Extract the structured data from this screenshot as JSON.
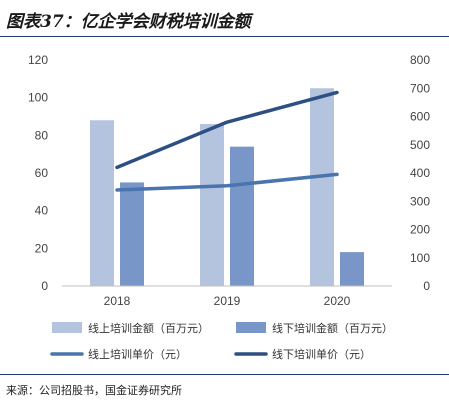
{
  "title": "图表37：亿企学会财税培训金额",
  "source": "来源：公司招股书，国金证券研究所",
  "chart_data": {
    "type": "bar+line",
    "categories": [
      "2018",
      "2019",
      "2020"
    ],
    "y_left": {
      "min": 0,
      "max": 120,
      "ticks": [
        "0",
        "20",
        "40",
        "60",
        "80",
        "100",
        "120"
      ]
    },
    "y_right": {
      "min": 0,
      "max": 800,
      "ticks": [
        "0",
        "100",
        "200",
        "300",
        "400",
        "500",
        "600",
        "700",
        "800"
      ]
    },
    "bar_series": [
      {
        "name": "线上培训金额（百万元）",
        "axis": "left",
        "color": "#b4c3de",
        "values": [
          88,
          86,
          105
        ]
      },
      {
        "name": "线下培训金额（百万元）",
        "axis": "left",
        "color": "#7897c8",
        "values": [
          55,
          74,
          18
        ]
      }
    ],
    "line_series": [
      {
        "name": "线上培训单价（元）",
        "axis": "right",
        "color": "#4a74ad",
        "values": [
          340,
          355,
          395
        ]
      },
      {
        "name": "线下培训单价（元）",
        "axis": "right",
        "color": "#2e4f84",
        "values": [
          420,
          580,
          685
        ]
      }
    ],
    "legend_position": "bottom",
    "grid": false
  }
}
